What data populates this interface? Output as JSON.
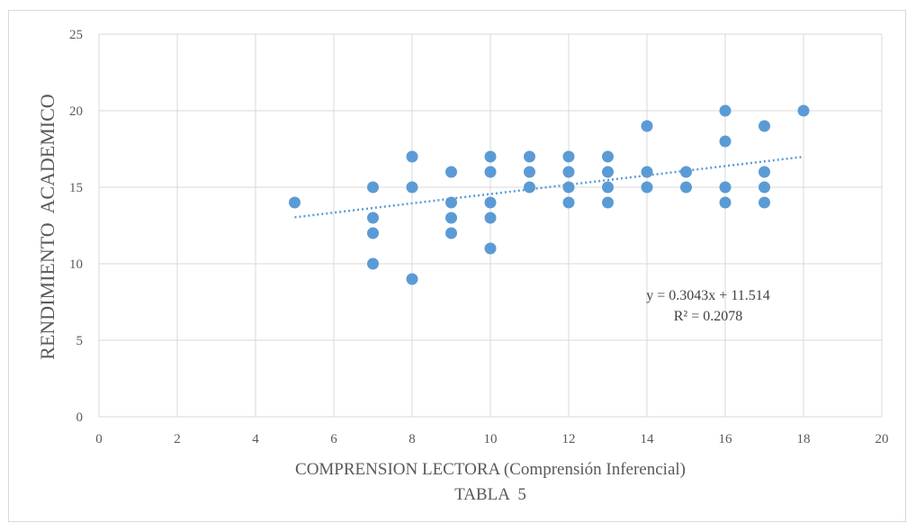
{
  "chart_data": {
    "type": "scatter",
    "xlabel": "COMPRENSION LECTORA (Comprensión Inferencial)",
    "subtitle": "TABLA  5",
    "ylabel": "RENDIMIENTO  ACADEMICO",
    "xlim": [
      0,
      20
    ],
    "ylim": [
      0,
      25
    ],
    "xticks": [
      "0",
      "2",
      "4",
      "6",
      "8",
      "10",
      "12",
      "14",
      "16",
      "18",
      "20"
    ],
    "yticks": [
      "0",
      "5",
      "10",
      "15",
      "20",
      "25"
    ],
    "grid": true,
    "marker_color": "#5b9bd5",
    "trendline_color": "#5b9bd5",
    "points": [
      [
        5,
        14
      ],
      [
        7,
        15
      ],
      [
        7,
        13
      ],
      [
        7,
        12
      ],
      [
        7,
        10
      ],
      [
        8,
        17
      ],
      [
        8,
        15
      ],
      [
        8,
        9
      ],
      [
        9,
        16
      ],
      [
        9,
        14
      ],
      [
        9,
        13
      ],
      [
        9,
        12
      ],
      [
        10,
        17
      ],
      [
        10,
        16
      ],
      [
        10,
        14
      ],
      [
        10,
        13
      ],
      [
        10,
        11
      ],
      [
        11,
        17
      ],
      [
        11,
        16
      ],
      [
        11,
        15
      ],
      [
        12,
        17
      ],
      [
        12,
        16
      ],
      [
        12,
        15
      ],
      [
        12,
        14
      ],
      [
        13,
        17
      ],
      [
        13,
        16
      ],
      [
        13,
        15
      ],
      [
        13,
        14
      ],
      [
        14,
        19
      ],
      [
        14,
        16
      ],
      [
        14,
        15
      ],
      [
        15,
        16
      ],
      [
        15,
        15
      ],
      [
        16,
        20
      ],
      [
        16,
        18
      ],
      [
        16,
        15
      ],
      [
        16,
        14
      ],
      [
        17,
        19
      ],
      [
        17,
        16
      ],
      [
        17,
        15
      ],
      [
        17,
        14
      ],
      [
        18,
        20
      ]
    ],
    "trendline": {
      "slope": 0.3043,
      "intercept": 11.514,
      "x_range": [
        5,
        18
      ]
    },
    "equation": "y = 0.3043x + 11.514",
    "r_squared": "R² = 0.2078"
  }
}
